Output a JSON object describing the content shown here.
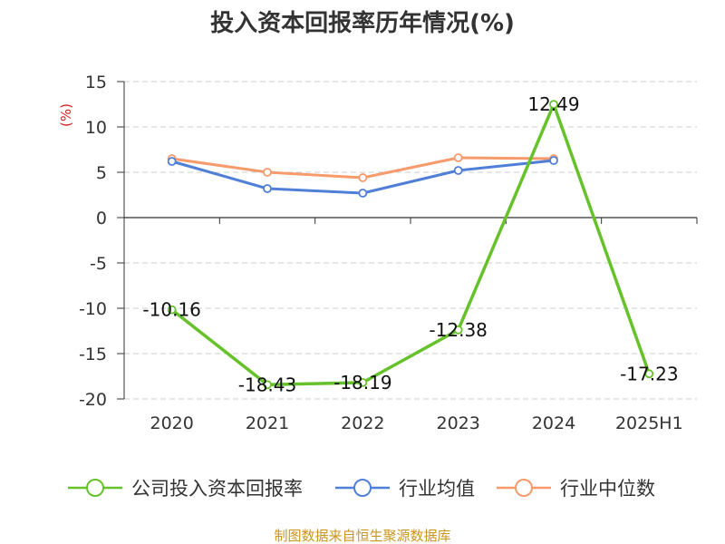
{
  "chart_data": {
    "type": "line",
    "title": "投入资本回报率历年情况(%)",
    "ylabel": "(%)",
    "categories": [
      "2020",
      "2021",
      "2022",
      "2023",
      "2024",
      "2025H1"
    ],
    "ylim": [
      -20,
      15
    ],
    "yticks": [
      "15",
      "10",
      "5",
      "0",
      "-5",
      "-10",
      "-15",
      "-20"
    ],
    "grid": true,
    "legend_position": "bottom",
    "series": [
      {
        "name": "公司投入资本回报率",
        "color": "#66c22a",
        "values": [
          -10.16,
          -18.43,
          -18.19,
          -12.38,
          12.49,
          -17.23
        ],
        "labels": [
          "-10.16",
          "-18.43",
          "-18.19",
          "-12.38",
          "12.49",
          "-17.23"
        ]
      },
      {
        "name": "行业均值",
        "color": "#4f7fd6",
        "values": [
          6.2,
          3.2,
          2.7,
          5.2,
          6.3,
          null
        ]
      },
      {
        "name": "行业中位数",
        "color": "#f79a6c",
        "values": [
          6.5,
          5.0,
          4.4,
          6.6,
          6.5,
          null
        ]
      }
    ]
  },
  "colors": {
    "unit_label": "#d62020",
    "source_text": "#c8961e",
    "grid": "#cccccc",
    "axis": "#333333"
  },
  "source_text": "制图数据来自恒生聚源数据库"
}
